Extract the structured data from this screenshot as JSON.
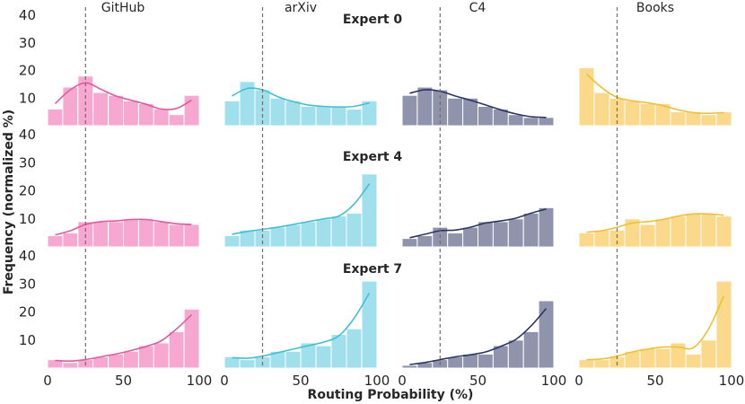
{
  "chart_data": {
    "type": "histogram",
    "xlabel": "Routing Probability (%)",
    "ylabel": "Frequency (normalized %)",
    "datasets": [
      "GitHub",
      "arXiv",
      "C4",
      "Books"
    ],
    "experts": [
      "Expert 0",
      "Expert 4",
      "Expert 7"
    ],
    "xlim": [
      0,
      100
    ],
    "ylim": [
      0,
      40
    ],
    "xticks": [
      "0",
      "50",
      "100"
    ],
    "yticks": [
      "10",
      "20",
      "30",
      "40"
    ],
    "threshold": 25,
    "bin_width": 10,
    "bin_starts": [
      0,
      10,
      20,
      30,
      40,
      50,
      60,
      70,
      80,
      90
    ],
    "colors": {
      "GitHub": {
        "fill": "#f7a8d0",
        "line": "#e05a9e"
      },
      "arXiv": {
        "fill": "#9fe0ec",
        "line": "#3ec0d6"
      },
      "C4": {
        "fill": "#8f93ac",
        "line": "#2d3461"
      },
      "Books": {
        "fill": "#fad98a",
        "line": "#f0c030"
      }
    },
    "rows": [
      {
        "expert": "Expert 0",
        "series": [
          {
            "dataset": "GitHub",
            "values": [
              6,
              14,
              18,
              12,
              11,
              9,
              8,
              6,
              4,
              11
            ]
          },
          {
            "dataset": "arXiv",
            "values": [
              9,
              16,
              13,
              10,
              9,
              7,
              7,
              7,
              6,
              9
            ]
          },
          {
            "dataset": "C4",
            "values": [
              11,
              14,
              13,
              10,
              10,
              7,
              6,
              4,
              3,
              3
            ]
          },
          {
            "dataset": "Books",
            "values": [
              21,
              12,
              10,
              9,
              8,
              8,
              5,
              5,
              4,
              5
            ]
          }
        ]
      },
      {
        "expert": "Expert 4",
        "series": [
          {
            "dataset": "GitHub",
            "values": [
              4,
              5,
              9,
              9,
              9,
              10,
              10,
              9,
              8,
              8
            ]
          },
          {
            "dataset": "arXiv",
            "values": [
              4,
              6,
              6,
              7,
              8,
              9,
              10,
              11,
              12,
              26
            ]
          },
          {
            "dataset": "C4",
            "values": [
              3,
              4,
              7,
              5,
              7,
              9,
              9,
              10,
              12,
              14
            ]
          },
          {
            "dataset": "Books",
            "values": [
              5,
              6,
              6,
              10,
              8,
              10,
              11,
              12,
              12,
              11
            ]
          }
        ]
      },
      {
        "expert": "Expert 7",
        "series": [
          {
            "dataset": "GitHub",
            "values": [
              3,
              2,
              3,
              4,
              5,
              6,
              8,
              9,
              13,
              21
            ]
          },
          {
            "dataset": "arXiv",
            "values": [
              4,
              3,
              4,
              6,
              6,
              9,
              8,
              12,
              14,
              31
            ]
          },
          {
            "dataset": "C4",
            "values": [
              1,
              2,
              3,
              4,
              5,
              5,
              8,
              10,
              13,
              24
            ]
          },
          {
            "dataset": "Books",
            "values": [
              3,
              3,
              4,
              6,
              7,
              7,
              9,
              5,
              10,
              31
            ]
          }
        ]
      }
    ]
  }
}
